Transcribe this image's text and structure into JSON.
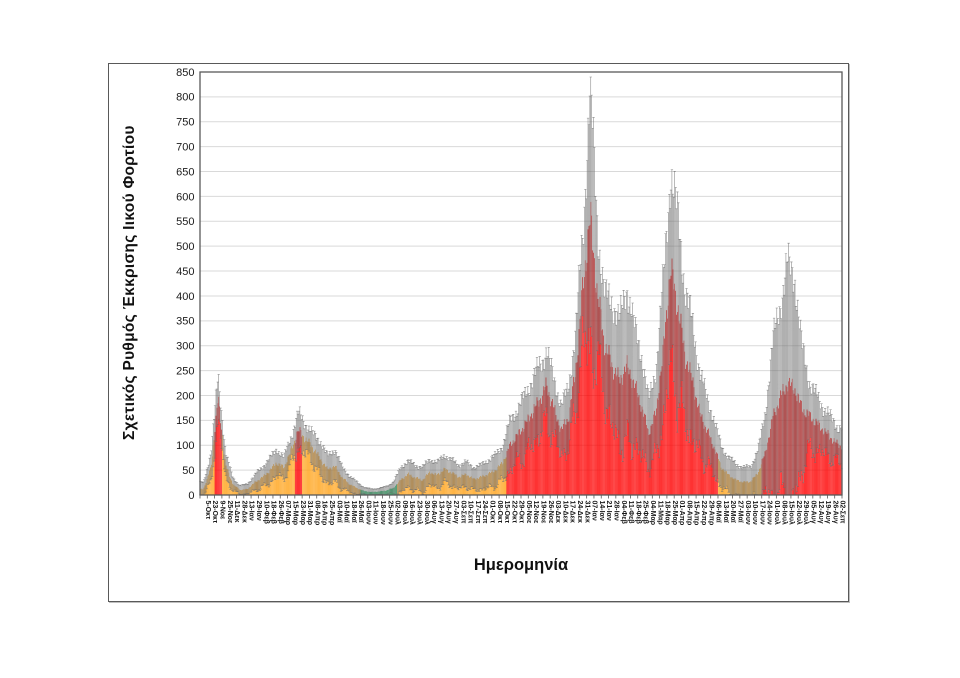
{
  "chart_data": {
    "type": "bar",
    "title": "",
    "xlabel": "Ημερομηνία",
    "ylabel": "Σχετικός Ρυθμός Έκκρισης Ιικού Φορτίου",
    "ylim": [
      0,
      850
    ],
    "ytick_step": 50,
    "grid": "horizontal-light",
    "legend_position": "none",
    "bars_per_category": 8,
    "categories": [
      "5-Οκτ",
      "23-Οκτ",
      "9-Νοε",
      "25-Νοε",
      "11-Δεκ",
      "28-Δεκ",
      "13-Ιαν",
      "29-Ιαν",
      "10-Φεβ",
      "18-Φεβ",
      "26-Φεβ",
      "07-Μαρ",
      "15-Μαρ",
      "23-Μαρ",
      "31-Μαρ",
      "08-Απρ",
      "16-Απρ",
      "25-Απρ",
      "03-Μαϊ",
      "10-Μαϊ",
      "18-Μαϊ",
      "26-Μαϊ",
      "03-Ιουν",
      "11-Ιουν",
      "18-Ιουν",
      "25-Ιουν",
      "02-Ιουλ",
      "09-Ιουλ",
      "16-Ιουλ",
      "23-Ιουλ",
      "30-Ιουλ",
      "06-Αυγ",
      "13-Αυγ",
      "20-Αυγ",
      "27-Αυγ",
      "03-Σεπ",
      "10-Σεπ",
      "17-Σεπ",
      "24-Σεπ",
      "01-Οκτ",
      "08-Οκτ",
      "15-Οκτ",
      "22-Οκτ",
      "29-Οκτ",
      "05-Νοε",
      "12-Νοε",
      "19-Νοε",
      "26-Νοε",
      "03-Δεκ",
      "10-Δεκ",
      "17-Δεκ",
      "24-Δεκ",
      "31-Δεκ",
      "07-Ιαν",
      "14-Ιαν",
      "21-Ιαν",
      "28-Ιαν",
      "04-Φεβ",
      "11-Φεβ",
      "18-Φεβ",
      "25-Φεβ",
      "04-Μαρ",
      "11-Μαρ",
      "18-Μαρ",
      "25-Μαρ",
      "01-Απρ",
      "08-Απρ",
      "15-Απρ",
      "22-Απρ",
      "29-Απρ",
      "06-Μαϊ",
      "13-Μαϊ",
      "20-Μαϊ",
      "27-Μαϊ",
      "03-Ιουν",
      "10-Ιουν",
      "17-Ιουν",
      "24-Ιουν",
      "01-Ιουλ",
      "08-Ιουλ",
      "15-Ιουλ",
      "22-Ιουλ",
      "29-Ιουλ",
      "05-Αυγ",
      "12-Αυγ",
      "19-Αυγ",
      "26-Αυγ",
      "02-Σεπ"
    ],
    "values": [
      12,
      55,
      195,
      60,
      22,
      10,
      12,
      25,
      35,
      48,
      65,
      55,
      90,
      130,
      112,
      95,
      72,
      52,
      58,
      35,
      22,
      14,
      8,
      6,
      7,
      9,
      14,
      30,
      42,
      35,
      30,
      46,
      40,
      52,
      45,
      36,
      42,
      32,
      36,
      42,
      50,
      65,
      100,
      120,
      140,
      165,
      190,
      220,
      175,
      130,
      155,
      250,
      420,
      560,
      400,
      300,
      260,
      230,
      260,
      225,
      180,
      125,
      165,
      290,
      455,
      380,
      280,
      230,
      165,
      130,
      95,
      55,
      40,
      30,
      26,
      27,
      45,
      85,
      155,
      195,
      225,
      215,
      175,
      160,
      145,
      130,
      115,
      100
    ],
    "error_whisker_top": [
      25,
      85,
      240,
      85,
      35,
      18,
      22,
      40,
      55,
      72,
      92,
      76,
      118,
      165,
      142,
      122,
      108,
      78,
      92,
      56,
      38,
      26,
      15,
      12,
      13,
      17,
      25,
      55,
      68,
      60,
      55,
      72,
      65,
      80,
      70,
      60,
      66,
      55,
      60,
      70,
      80,
      100,
      150,
      172,
      200,
      230,
      260,
      290,
      235,
      180,
      215,
      330,
      530,
      830,
      530,
      400,
      390,
      350,
      420,
      340,
      285,
      190,
      255,
      430,
      650,
      560,
      415,
      345,
      250,
      195,
      150,
      95,
      75,
      62,
      55,
      57,
      92,
      165,
      310,
      380,
      465,
      440,
      300,
      230,
      200,
      175,
      155,
      135
    ],
    "bar_color_keys": [
      "o",
      "o",
      "r",
      "o",
      "o",
      "o",
      "o",
      "o",
      "o",
      "o",
      "o",
      "o",
      "o",
      "r",
      "o",
      "o",
      "o",
      "o",
      "o",
      "o",
      "o",
      "o",
      "g",
      "g",
      "g",
      "g",
      "g",
      "o",
      "o",
      "o",
      "o",
      "o",
      "o",
      "o",
      "o",
      "o",
      "o",
      "o",
      "o",
      "o",
      "o",
      "o",
      "r",
      "r",
      "r",
      "r",
      "r",
      "r",
      "r",
      "r",
      "r",
      "r",
      "r",
      "r",
      "r",
      "r",
      "r",
      "r",
      "r",
      "r",
      "r",
      "r",
      "r",
      "r",
      "r",
      "r",
      "r",
      "r",
      "r",
      "r",
      "r",
      "o",
      "o",
      "o",
      "o",
      "o",
      "o",
      "r",
      "r",
      "r",
      "r",
      "r",
      "r",
      "r",
      "r",
      "r",
      "r",
      "r"
    ],
    "palette": {
      "r": "#FE0000",
      "o": "#FFA31A",
      "g": "#00B050",
      "error_bar": "#6E6E6E",
      "gridline": "#D9D9D9",
      "axis": "#595959",
      "text": "#1A1A1A"
    }
  }
}
